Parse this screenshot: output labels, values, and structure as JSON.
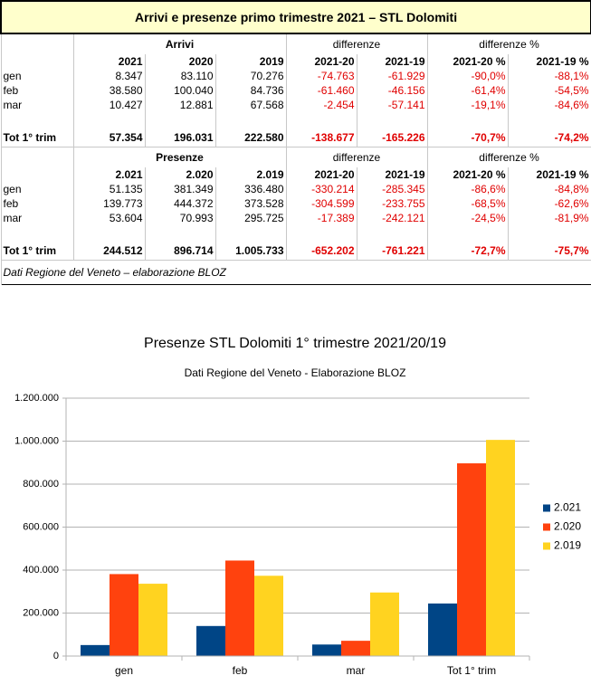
{
  "table": {
    "title": "Arrivi e presenze primo trimestre 2021 – STL Dolomiti",
    "sections": [
      {
        "group_headers": [
          "Arrivi",
          "differenze",
          "differenze %"
        ],
        "columns": [
          "2021",
          "2020",
          "2019",
          "2021-20",
          "2021-19",
          "2021-20 %",
          "2021-19 %"
        ],
        "rows": [
          {
            "label": "gen",
            "cells": [
              "8.347",
              "83.110",
              "70.276",
              "-74.763",
              "-61.929",
              "-90,0%",
              "-88,1%"
            ]
          },
          {
            "label": "feb",
            "cells": [
              "38.580",
              "100.040",
              "84.736",
              "-61.460",
              "-46.156",
              "-61,4%",
              "-54,5%"
            ]
          },
          {
            "label": "mar",
            "cells": [
              "10.427",
              "12.881",
              "67.568",
              "-2.454",
              "-57.141",
              "-19,1%",
              "-84,6%"
            ]
          }
        ],
        "total": {
          "label": "Tot 1° trim",
          "cells": [
            "57.354",
            "196.031",
            "222.580",
            "-138.677",
            "-165.226",
            "-70,7%",
            "-74,2%"
          ]
        }
      },
      {
        "group_headers": [
          "Presenze",
          "differenze",
          "differenze %"
        ],
        "columns": [
          "2.021",
          "2.020",
          "2.019",
          "2021-20",
          "2021-19",
          "2021-20 %",
          "2021-19 %"
        ],
        "rows": [
          {
            "label": "gen",
            "cells": [
              "51.135",
              "381.349",
              "336.480",
              "-330.214",
              "-285.345",
              "-86,6%",
              "-84,8%"
            ]
          },
          {
            "label": "feb",
            "cells": [
              "139.773",
              "444.372",
              "373.528",
              "-304.599",
              "-233.755",
              "-68,5%",
              "-62,6%"
            ]
          },
          {
            "label": "mar",
            "cells": [
              "53.604",
              "70.993",
              "295.725",
              "-17.389",
              "-242.121",
              "-24,5%",
              "-81,9%"
            ]
          }
        ],
        "total": {
          "label": "Tot 1° trim",
          "cells": [
            "244.512",
            "896.714",
            "1.005.733",
            "-652.202",
            "-761.221",
            "-72,7%",
            "-75,7%"
          ]
        }
      }
    ],
    "note": "Dati Regione del Veneto – elaborazione BLOZ"
  },
  "chart_data": {
    "type": "bar",
    "title": "Presenze STL Dolomiti 1° trimestre 2021/20/19",
    "subtitle": "Dati Regione del Veneto - Elaborazione BLOZ",
    "categories": [
      "gen",
      "feb",
      "mar",
      "Tot 1° trim"
    ],
    "series": [
      {
        "name": "2.021",
        "color": "#004586",
        "values": [
          51135,
          139773,
          53604,
          244512
        ]
      },
      {
        "name": "2.020",
        "color": "#ff420e",
        "values": [
          381349,
          444372,
          70993,
          896714
        ]
      },
      {
        "name": "2.019",
        "color": "#ffd320",
        "values": [
          336480,
          373528,
          295725,
          1005733
        ]
      }
    ],
    "ylim": [
      0,
      1200000
    ],
    "yticks": [
      0,
      {
        "value": 200000,
        "label": "200.000"
      },
      {
        "value": 400000,
        "label": "400.000"
      },
      {
        "value": 600000,
        "label": "600.000"
      },
      {
        "value": 800000,
        "label": "800.000"
      },
      {
        "value": 1000000,
        "label": "1.000.000"
      },
      {
        "value": 1200000,
        "label": "1.200.000"
      }
    ],
    "grid": true,
    "legend": "right"
  }
}
